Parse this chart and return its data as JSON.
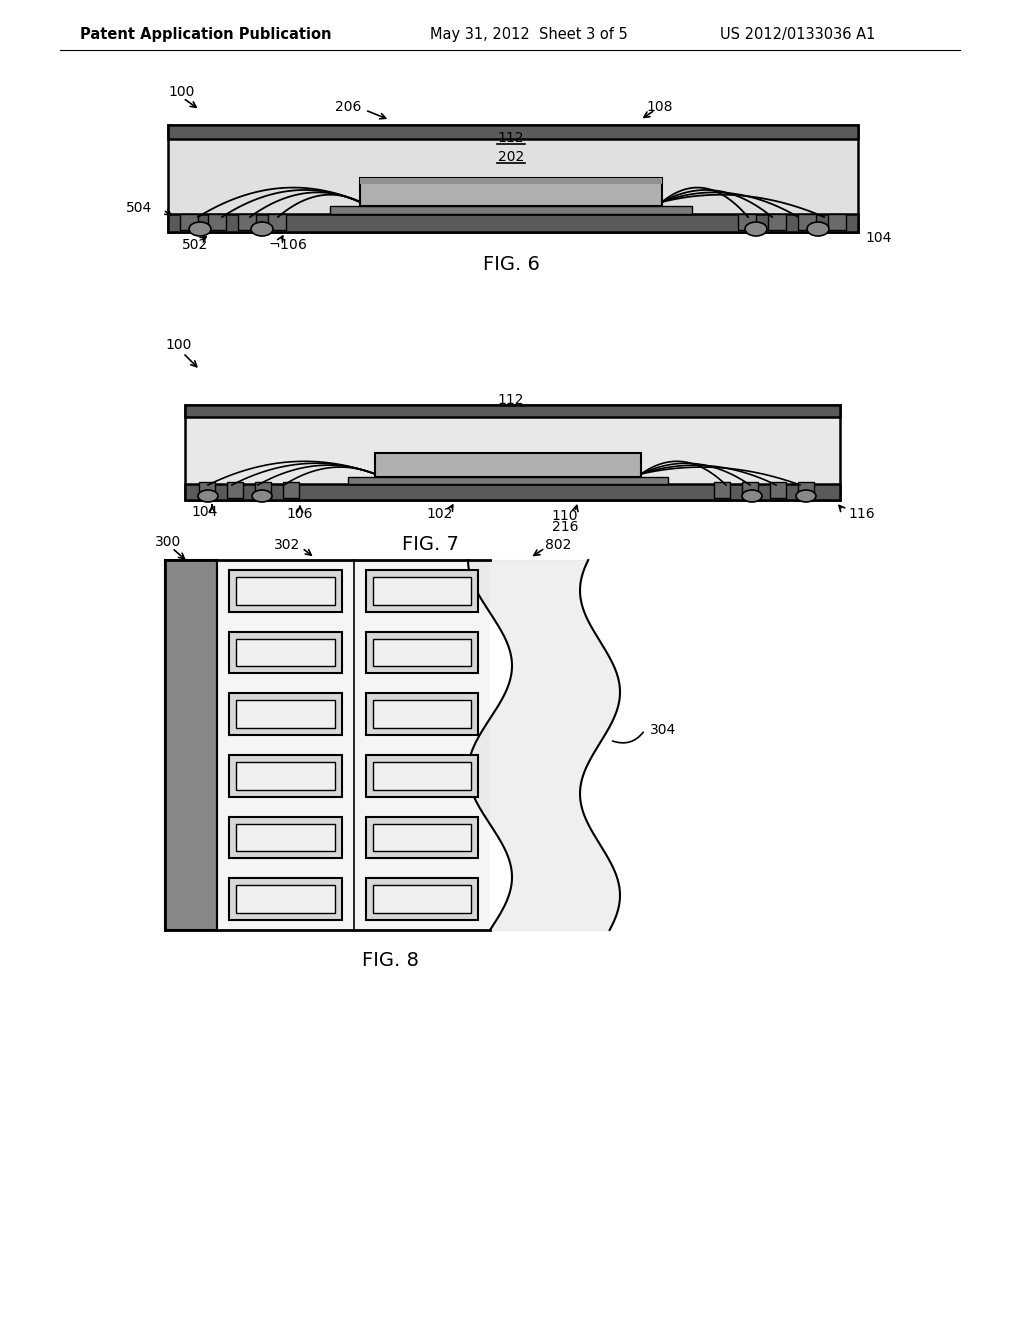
{
  "bg_color": "#ffffff",
  "header_left": "Patent Application Publication",
  "header_center": "May 31, 2012  Sheet 3 of 5",
  "header_right": "US 2012/0133036 A1",
  "fig6_caption": "FIG. 6",
  "fig7_caption": "FIG. 7",
  "fig8_caption": "FIG. 8",
  "line_color": "#000000",
  "dark_fill": "#4a4a4a",
  "mid_fill": "#888888",
  "light_fill": "#cccccc",
  "pkg_fill": "#e8e8e8",
  "white_fill": "#ffffff"
}
